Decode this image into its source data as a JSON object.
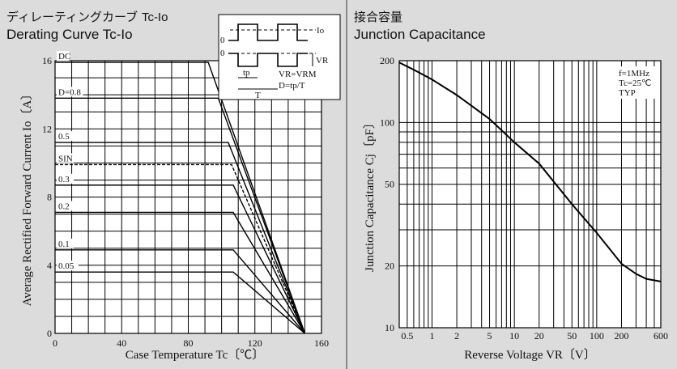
{
  "left": {
    "title_jp": "ディレーティングカーブ",
    "title_jp_suffix": "Tc-Io",
    "title_en": "Derating Curve Tc-Io",
    "inset": {
      "io": "Io",
      "zero_top": "0",
      "zero_bottom": "0",
      "vr": "VR",
      "eq1": "VR=VRM",
      "eq2": "D=tp/T",
      "tp": "tp",
      "T": "T"
    }
  },
  "right": {
    "title_jp": "接合容量",
    "title_en": "Junction Capacitance",
    "annotations": [
      "f=1MHz",
      "Tc=25℃",
      "TYP"
    ]
  },
  "chart_data": [
    {
      "type": "line",
      "title": "Derating Curve Tc-Io",
      "xlabel": "Case Temperature  Tc〔℃〕",
      "ylabel": "Average Rectified Forward Current  Io〔A〕",
      "xlim": [
        0,
        160
      ],
      "ylim": [
        0,
        16
      ],
      "xticks": [
        "0",
        "40",
        "80",
        "120",
        "160"
      ],
      "yticks": [
        "0",
        "4",
        "8",
        "12",
        "16"
      ],
      "series": [
        {
          "name": "DC",
          "dashed": false,
          "x": [
            0,
            92,
            150
          ],
          "y": [
            15.9,
            15.9,
            0
          ]
        },
        {
          "name": "D=0.8",
          "dashed": false,
          "x": [
            0,
            98,
            150
          ],
          "y": [
            13.8,
            13.8,
            0
          ]
        },
        {
          "name": "0.5",
          "dashed": false,
          "x": [
            0,
            104,
            150
          ],
          "y": [
            11.2,
            11.2,
            0
          ]
        },
        {
          "name": "SIN",
          "dashed": true,
          "x": [
            0,
            106,
            150
          ],
          "y": [
            9.9,
            9.9,
            0
          ]
        },
        {
          "name": "0.3",
          "dashed": false,
          "x": [
            0,
            107,
            150
          ],
          "y": [
            8.7,
            8.7,
            0
          ]
        },
        {
          "name": "0.2",
          "dashed": false,
          "x": [
            0,
            107,
            150
          ],
          "y": [
            7.1,
            7.1,
            0
          ]
        },
        {
          "name": "0.1",
          "dashed": false,
          "x": [
            0,
            107,
            150
          ],
          "y": [
            4.9,
            4.9,
            0
          ]
        },
        {
          "name": "0.05",
          "dashed": false,
          "x": [
            0,
            107,
            150
          ],
          "y": [
            3.6,
            3.6,
            0
          ]
        }
      ]
    },
    {
      "type": "line",
      "title": "Junction Capacitance",
      "xlabel": "Reverse Voltage  VR〔V〕",
      "ylabel": "Junction Capacitance  Cj〔pF〕",
      "xscale": "log",
      "yscale": "log",
      "xlim": [
        0.4,
        600
      ],
      "ylim": [
        10,
        200
      ],
      "xticks": [
        "0.5",
        "1",
        "2",
        "5",
        "10",
        "20",
        "50",
        "100",
        "200",
        "600"
      ],
      "yticks": [
        "10",
        "20",
        "50",
        "100",
        "200"
      ],
      "series": [
        {
          "x": [
            0.4,
            0.7,
            1,
            2,
            5,
            10,
            20,
            50,
            100,
            200,
            300,
            400,
            600
          ],
          "y": [
            196,
            175,
            162,
            136,
            104,
            80,
            63,
            40,
            29,
            20.5,
            18.3,
            17.3,
            16.8
          ]
        }
      ]
    }
  ]
}
